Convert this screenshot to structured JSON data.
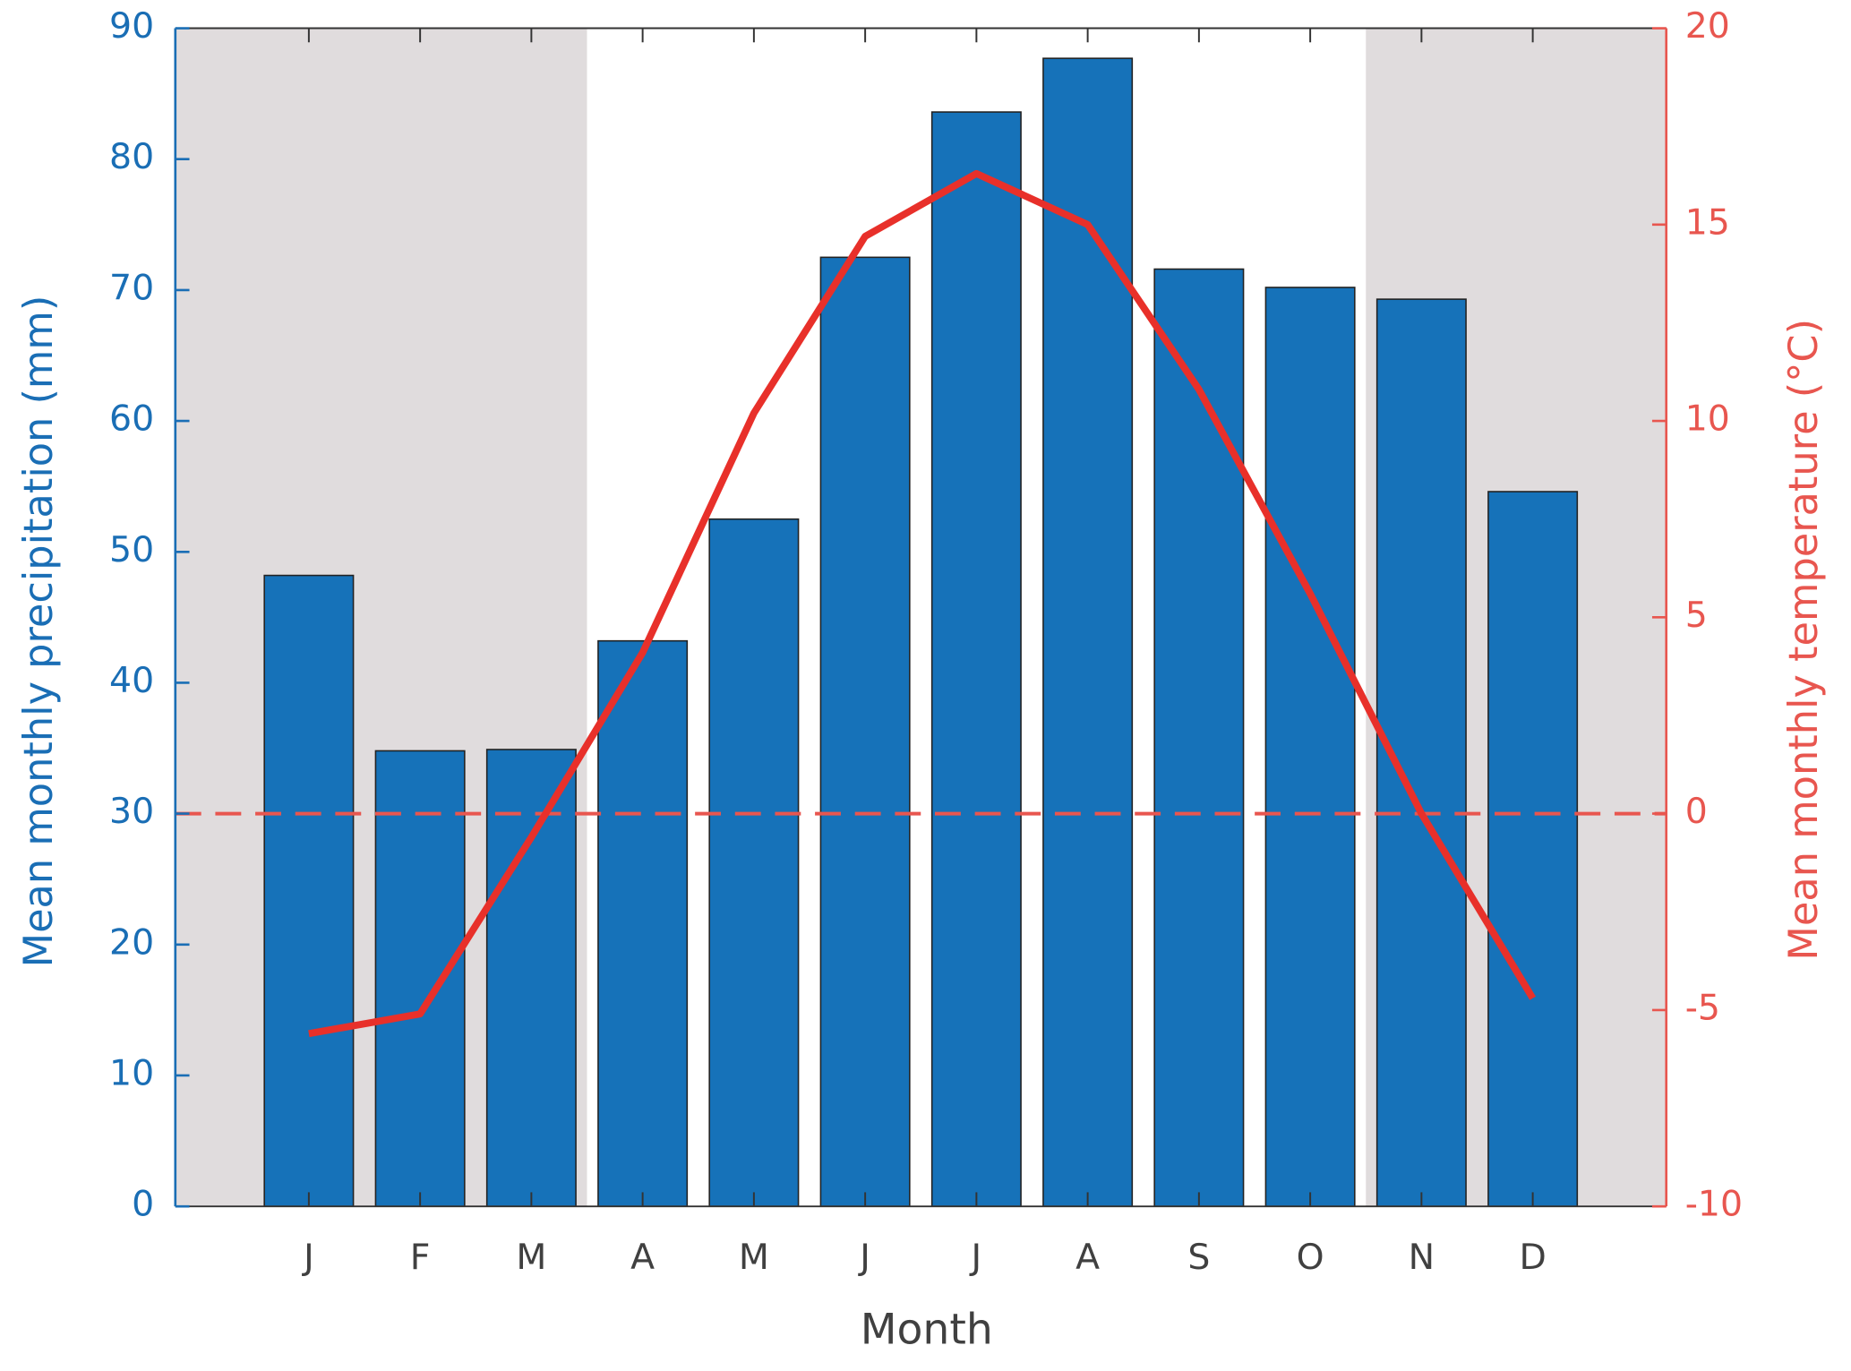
{
  "chart_data": {
    "type": "bar-line",
    "x_label": "Month",
    "y_label": "Mean monthly precipitation (mm)",
    "y2_label": "Mean monthly temperature (°C)",
    "categories": [
      "J",
      "F",
      "M",
      "A",
      "M",
      "J",
      "J",
      "A",
      "S",
      "O",
      "N",
      "D"
    ],
    "series": [
      {
        "name": "Mean monthly precipitation",
        "type": "bar",
        "color": "#1672b9",
        "values": [
          48.2,
          34.8,
          34.9,
          43.2,
          52.5,
          72.5,
          83.6,
          87.7,
          71.6,
          70.2,
          69.3,
          54.6
        ]
      },
      {
        "name": "Mean monthly temperature",
        "type": "line",
        "axis": "y2",
        "color": "#e8302a",
        "values": [
          -5.6,
          -5.1,
          -0.6,
          4.1,
          10.2,
          14.7,
          16.3,
          15.0,
          10.8,
          5.6,
          0.0,
          -4.7
        ]
      }
    ],
    "ylim": [
      0,
      90
    ],
    "yticks": [
      0,
      10,
      20,
      30,
      40,
      50,
      60,
      70,
      80,
      90
    ],
    "y2lim": [
      -10,
      20
    ],
    "y2ticks": [
      -10,
      -5,
      0,
      5,
      10,
      15,
      20
    ],
    "y2_reference": 0,
    "y_color": "#1a6eb5",
    "y2_color": "#e8564f"
  }
}
